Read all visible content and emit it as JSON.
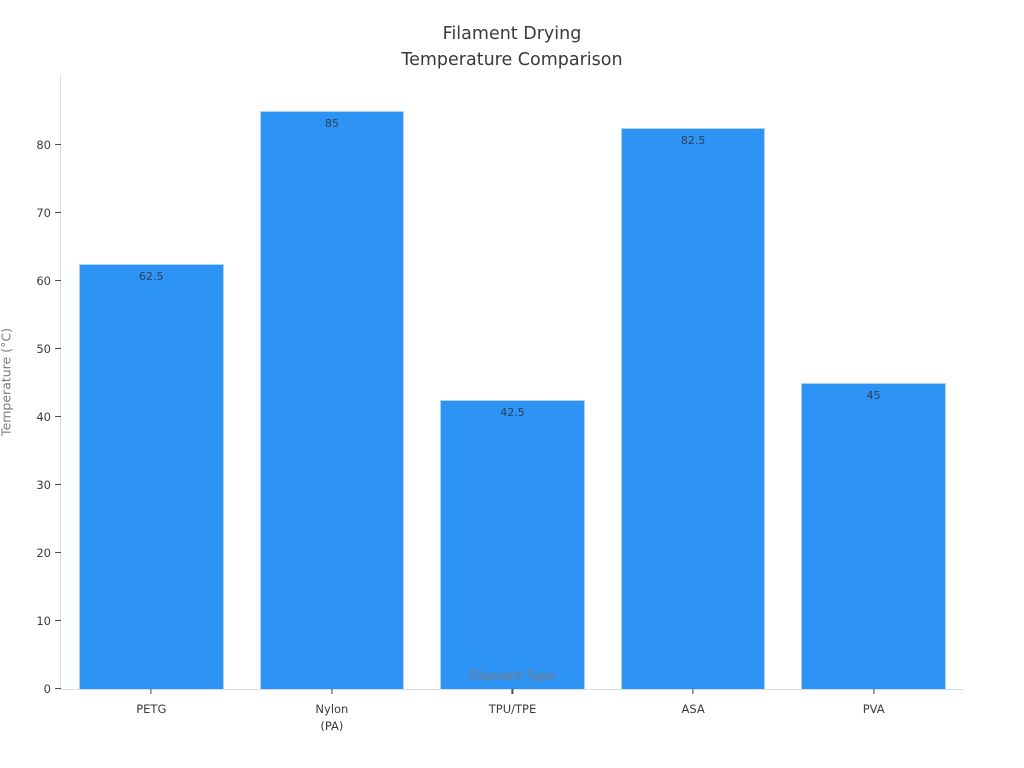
{
  "chart_data": {
    "type": "bar",
    "title": "Filament Drying\nTemperature Comparison",
    "categories": [
      "PETG",
      "Nylon\n(PA)",
      "TPU/TPE",
      "ASA",
      "PVA"
    ],
    "values": [
      62.5,
      85,
      42.5,
      82.5,
      45
    ],
    "value_labels": [
      "62.5",
      "85",
      "42.5",
      "82.5",
      "45"
    ],
    "xlabel": "Filament Type",
    "ylabel": "Temperature (°C)",
    "ylim": [
      0,
      90.3
    ],
    "yticks": [
      0,
      10,
      20,
      30,
      40,
      50,
      60,
      70,
      80
    ],
    "grid": false,
    "legend_position": "none",
    "bar_color": "#2d93f5",
    "bar_edge_color": "#a9d2f3"
  },
  "colors": {
    "background": "#ffffff",
    "title_text": "#3a3a3a",
    "tick_label": "#3b3b3b",
    "bar_label": "#2e4053",
    "axis_label": "#7b7b7b",
    "spine": "#d9dee4",
    "tick_mark": "#4a4a4a"
  }
}
